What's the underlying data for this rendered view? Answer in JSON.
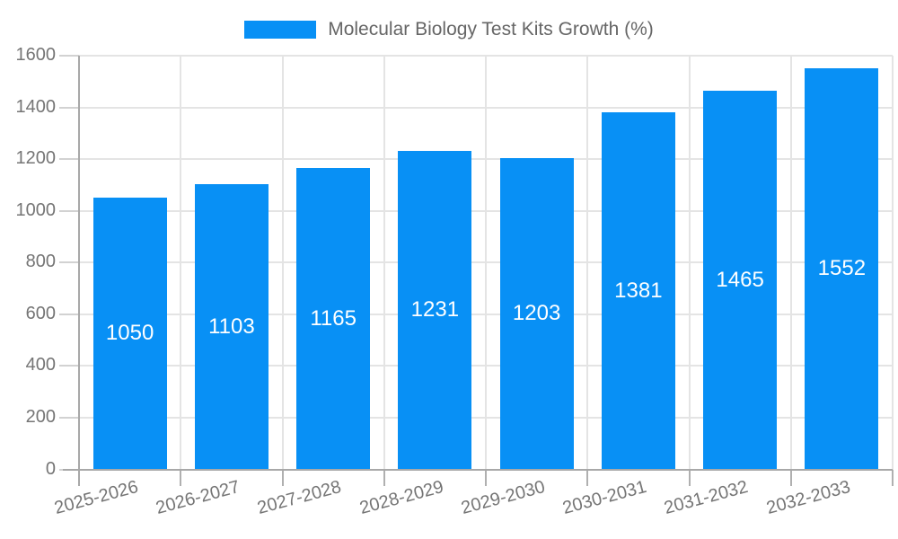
{
  "chart_data": {
    "type": "bar",
    "title": "Molecular Biology Test Kits Growth (%)",
    "series_name": "Molecular Biology Test Kits Growth (%)",
    "categories": [
      "2025-2026",
      "2026-2027",
      "2027-2028",
      "2028-2029",
      "2029-2030",
      "2030-2031",
      "2031-2032",
      "2032-2033"
    ],
    "values": [
      1050,
      1103,
      1165,
      1231,
      1203,
      1381,
      1465,
      1552
    ],
    "xlabel": "",
    "ylabel": "",
    "ylim": [
      0,
      1600
    ],
    "yticks": [
      0,
      200,
      400,
      600,
      800,
      1000,
      1200,
      1400,
      1600
    ],
    "grid": true,
    "legend_position": "top-center",
    "value_labels": "inside-middle",
    "x_label_rotation_deg": -15
  },
  "colors": {
    "bar": "#0890F5",
    "grid": "#e4e4e4",
    "axis": "#a8a8a8",
    "tick_text": "#757575",
    "legend_text": "#666666",
    "value_label": "#ffffff",
    "background": "#ffffff"
  }
}
